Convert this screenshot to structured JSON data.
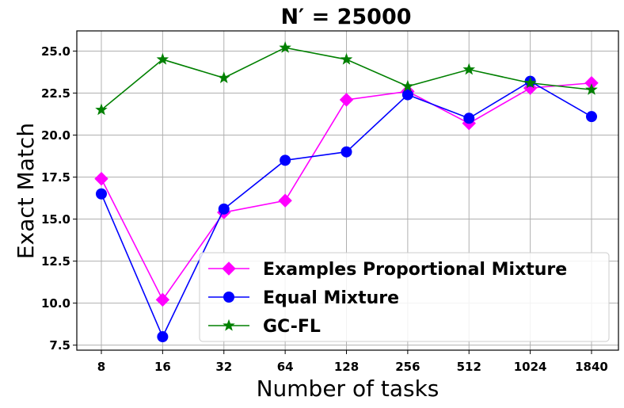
{
  "chart_data": {
    "type": "line",
    "title": "N′ = 25000",
    "xlabel": "Number of tasks",
    "ylabel": "Exact Match",
    "categories": [
      "8",
      "16",
      "32",
      "64",
      "128",
      "256",
      "512",
      "1024",
      "1840"
    ],
    "ylim": [
      7.2,
      26.2
    ],
    "yticks": [
      "7.5",
      "10.0",
      "12.5",
      "15.0",
      "17.5",
      "20.0",
      "22.5",
      "25.0"
    ],
    "grid": true,
    "legend_position": "lower-right",
    "series": [
      {
        "name": "Examples Proportional Mixture",
        "color": "#ff00ff",
        "marker": "diamond",
        "values": [
          17.4,
          10.2,
          15.4,
          16.1,
          22.1,
          22.6,
          20.7,
          22.8,
          23.1
        ]
      },
      {
        "name": "Equal Mixture",
        "color": "#0000ff",
        "marker": "circle",
        "values": [
          16.5,
          8.0,
          15.6,
          18.5,
          19.0,
          22.4,
          21.0,
          23.2,
          21.1
        ]
      },
      {
        "name": "GC-FL",
        "color": "#008000",
        "marker": "star",
        "values": [
          21.5,
          24.5,
          23.4,
          25.2,
          24.5,
          22.9,
          23.9,
          23.1,
          22.7
        ]
      }
    ]
  }
}
